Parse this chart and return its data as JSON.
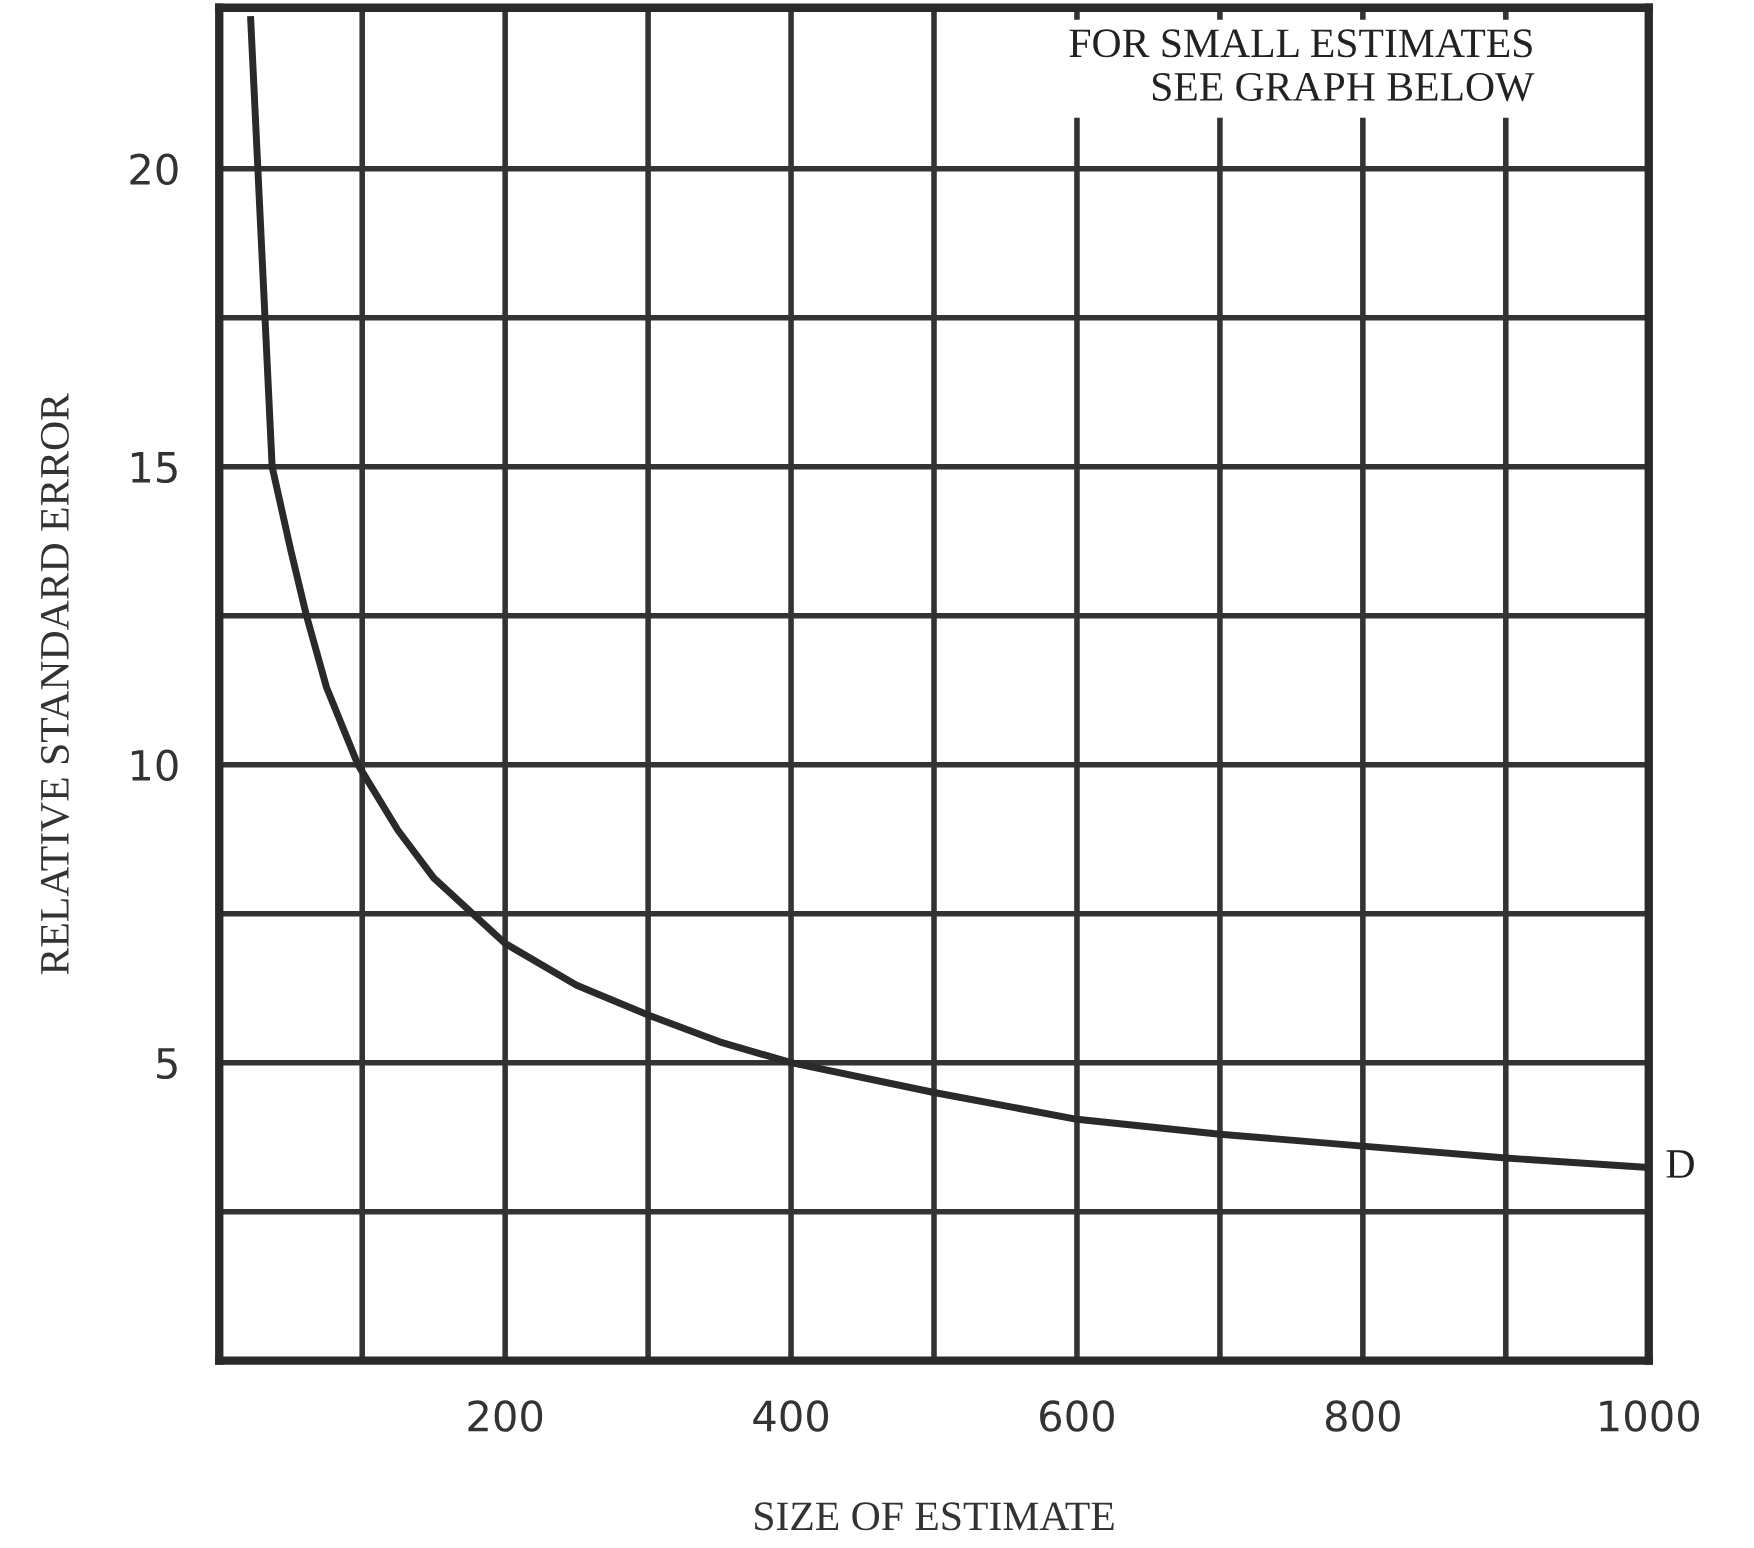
{
  "chart_data": {
    "type": "line",
    "xlabel": "SIZE OF ESTIMATE",
    "ylabel": "RELATIVE STANDARD ERROR",
    "x": [
      22,
      30,
      37,
      50,
      61,
      75,
      97,
      125,
      150,
      200,
      250,
      300,
      350,
      400,
      500,
      600,
      700,
      800,
      900,
      1000
    ],
    "series": [
      {
        "color": "#2a2a2a",
        "values": [
          22.5,
          18.5,
          15,
          13.6,
          12.5,
          11.3,
          10,
          8.9,
          8.1,
          7,
          6.3,
          5.8,
          5.35,
          5.0,
          4.5,
          4.05,
          3.8,
          3.6,
          3.4,
          3.24
        ]
      }
    ],
    "xlim": [
      0,
      1000
    ],
    "ylim": [
      0,
      22.7
    ],
    "xticks": [
      {
        "value": 100,
        "label": null
      },
      200,
      {
        "value": 300,
        "label": null
      },
      400,
      {
        "value": 500,
        "label": null
      },
      600,
      {
        "value": 700,
        "label": null
      },
      800,
      {
        "value": 900,
        "label": null
      },
      1000
    ],
    "yticks": [
      {
        "value": 2.5,
        "label": null
      },
      5,
      {
        "value": 7.5,
        "label": null
      },
      10,
      {
        "value": 12.5,
        "label": null
      },
      15,
      {
        "value": 17.5,
        "label": null
      },
      20
    ],
    "grid": true,
    "marker": "none",
    "line_style": "solid",
    "legend": false,
    "annotations": [
      "FOR SMALL ESTIMATES\nSEE GRAPH BELOW",
      {
        "text": "D",
        "x": 1000,
        "y": 3.24
      }
    ]
  }
}
